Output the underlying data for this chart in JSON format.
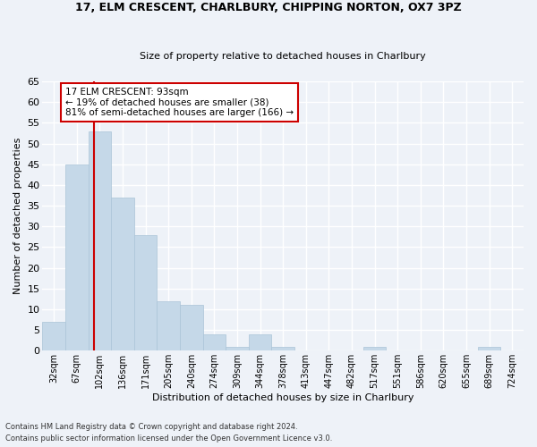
{
  "title1": "17, ELM CRESCENT, CHARLBURY, CHIPPING NORTON, OX7 3PZ",
  "title2": "Size of property relative to detached houses in Charlbury",
  "xlabel": "Distribution of detached houses by size in Charlbury",
  "ylabel": "Number of detached properties",
  "footnote1": "Contains HM Land Registry data © Crown copyright and database right 2024.",
  "footnote2": "Contains public sector information licensed under the Open Government Licence v3.0.",
  "categories": [
    "32sqm",
    "67sqm",
    "102sqm",
    "136sqm",
    "171sqm",
    "205sqm",
    "240sqm",
    "274sqm",
    "309sqm",
    "344sqm",
    "378sqm",
    "413sqm",
    "447sqm",
    "482sqm",
    "517sqm",
    "551sqm",
    "586sqm",
    "620sqm",
    "655sqm",
    "689sqm",
    "724sqm"
  ],
  "values": [
    7,
    45,
    53,
    37,
    28,
    12,
    11,
    4,
    1,
    4,
    1,
    0,
    0,
    0,
    1,
    0,
    0,
    0,
    0,
    1,
    0
  ],
  "bar_color": "#c5d8e8",
  "bar_edge_color": "#aac4d8",
  "bg_color": "#eef2f8",
  "grid_color": "#ffffff",
  "subject_line_color": "#cc0000",
  "annotation_text": "17 ELM CRESCENT: 93sqm\n← 19% of detached houses are smaller (38)\n81% of semi-detached houses are larger (166) →",
  "annotation_box_color": "#cc0000",
  "ylim": [
    0,
    65
  ],
  "yticks": [
    0,
    5,
    10,
    15,
    20,
    25,
    30,
    35,
    40,
    45,
    50,
    55,
    60,
    65
  ]
}
